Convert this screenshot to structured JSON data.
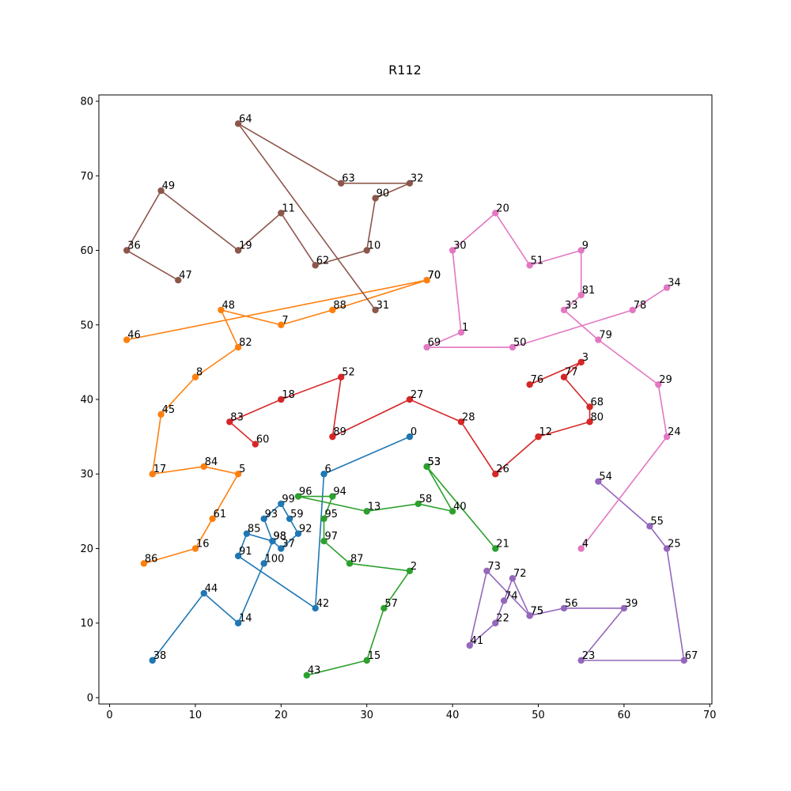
{
  "chart_data": {
    "type": "line",
    "title": "R112",
    "xlabel": "",
    "ylabel": "",
    "xlim": [
      -1.25,
      70.25
    ],
    "ylim": [
      -0.85,
      80.85
    ],
    "x_ticks": [
      0,
      10,
      20,
      30,
      40,
      50,
      60,
      70
    ],
    "y_ticks": [
      0,
      10,
      20,
      30,
      40,
      50,
      60,
      70,
      80
    ],
    "grid": false,
    "legend": "none",
    "series": [
      {
        "color": "#1f77b4",
        "points": [
          {
            "label": "0",
            "x": 35,
            "y": 35
          },
          {
            "label": "6",
            "x": 25,
            "y": 30
          },
          {
            "label": "42",
            "x": 24,
            "y": 12
          },
          {
            "label": "91",
            "x": 15,
            "y": 19
          },
          {
            "label": "85",
            "x": 16,
            "y": 22
          },
          {
            "label": "98",
            "x": 19,
            "y": 21
          },
          {
            "label": "37",
            "x": 20,
            "y": 20
          },
          {
            "label": "92",
            "x": 22,
            "y": 22
          },
          {
            "label": "59",
            "x": 21,
            "y": 24
          },
          {
            "label": "99",
            "x": 20,
            "y": 26
          },
          {
            "label": "93",
            "x": 18,
            "y": 24
          },
          {
            "label": "98",
            "x": 19,
            "y": 21
          },
          {
            "label": "100",
            "x": 18,
            "y": 18
          },
          {
            "label": "14",
            "x": 15,
            "y": 10
          },
          {
            "label": "44",
            "x": 11,
            "y": 14
          },
          {
            "label": "38",
            "x": 5,
            "y": 5
          }
        ]
      },
      {
        "color": "#ff7f0e",
        "points": [
          {
            "label": "70",
            "x": 37,
            "y": 56
          },
          {
            "label": "46",
            "x": 2,
            "y": 48
          },
          {
            "label": "70",
            "x": 37,
            "y": 56
          },
          {
            "label": "88",
            "x": 26,
            "y": 52
          },
          {
            "label": "7",
            "x": 20,
            "y": 50
          },
          {
            "label": "48",
            "x": 13,
            "y": 52
          },
          {
            "label": "82",
            "x": 15,
            "y": 47
          },
          {
            "label": "8",
            "x": 10,
            "y": 43
          },
          {
            "label": "45",
            "x": 6,
            "y": 38
          },
          {
            "label": "17",
            "x": 5,
            "y": 30
          },
          {
            "label": "84",
            "x": 11,
            "y": 31
          },
          {
            "label": "5",
            "x": 15,
            "y": 30
          },
          {
            "label": "61",
            "x": 12,
            "y": 24
          },
          {
            "label": "16",
            "x": 10,
            "y": 20
          },
          {
            "label": "86",
            "x": 4,
            "y": 18
          }
        ]
      },
      {
        "color": "#2ca02c",
        "points": [
          {
            "label": "53",
            "x": 37,
            "y": 31
          },
          {
            "label": "21",
            "x": 45,
            "y": 20
          },
          {
            "label": "53",
            "x": 37,
            "y": 31
          },
          {
            "label": "40",
            "x": 40,
            "y": 25
          },
          {
            "label": "58",
            "x": 36,
            "y": 26
          },
          {
            "label": "13",
            "x": 30,
            "y": 25
          },
          {
            "label": "96",
            "x": 22,
            "y": 27
          },
          {
            "label": "94",
            "x": 26,
            "y": 27
          },
          {
            "label": "95",
            "x": 25,
            "y": 24
          },
          {
            "label": "97",
            "x": 25,
            "y": 21
          },
          {
            "label": "87",
            "x": 28,
            "y": 18
          },
          {
            "label": "2",
            "x": 35,
            "y": 17
          },
          {
            "label": "57",
            "x": 32,
            "y": 12
          },
          {
            "label": "15",
            "x": 30,
            "y": 5
          },
          {
            "label": "43",
            "x": 23,
            "y": 3
          }
        ]
      },
      {
        "color": "#d62728",
        "points": [
          {
            "label": "60",
            "x": 17,
            "y": 34
          },
          {
            "label": "83",
            "x": 14,
            "y": 37
          },
          {
            "label": "18",
            "x": 20,
            "y": 40
          },
          {
            "label": "52",
            "x": 27,
            "y": 43
          },
          {
            "label": "89",
            "x": 26,
            "y": 35
          },
          {
            "label": "27",
            "x": 35,
            "y": 40
          },
          {
            "label": "28",
            "x": 41,
            "y": 37
          },
          {
            "label": "26",
            "x": 45,
            "y": 30
          },
          {
            "label": "12",
            "x": 50,
            "y": 35
          },
          {
            "label": "80",
            "x": 56,
            "y": 37
          },
          {
            "label": "68",
            "x": 56,
            "y": 39
          },
          {
            "label": "77",
            "x": 53,
            "y": 43
          },
          {
            "label": "3",
            "x": 55,
            "y": 45
          },
          {
            "label": "76",
            "x": 49,
            "y": 42
          }
        ]
      },
      {
        "color": "#9467bd",
        "points": [
          {
            "label": "54",
            "x": 57,
            "y": 29
          },
          {
            "label": "55",
            "x": 63,
            "y": 23
          },
          {
            "label": "25",
            "x": 65,
            "y": 20
          },
          {
            "label": "67",
            "x": 67,
            "y": 5
          },
          {
            "label": "23",
            "x": 55,
            "y": 5
          },
          {
            "label": "39",
            "x": 60,
            "y": 12
          },
          {
            "label": "56",
            "x": 53,
            "y": 12
          },
          {
            "label": "75",
            "x": 49,
            "y": 11
          },
          {
            "label": "72",
            "x": 47,
            "y": 16
          },
          {
            "label": "74",
            "x": 46,
            "y": 13
          },
          {
            "label": "22",
            "x": 45,
            "y": 10
          },
          {
            "label": "41",
            "x": 42,
            "y": 7
          },
          {
            "label": "73",
            "x": 44,
            "y": 17
          },
          {
            "label": "75",
            "x": 49,
            "y": 11
          }
        ]
      },
      {
        "color": "#8c564b",
        "points": [
          {
            "label": "31",
            "x": 31,
            "y": 52
          },
          {
            "label": "64",
            "x": 15,
            "y": 77
          },
          {
            "label": "63",
            "x": 27,
            "y": 69
          },
          {
            "label": "32",
            "x": 35,
            "y": 69
          },
          {
            "label": "90",
            "x": 31,
            "y": 67
          },
          {
            "label": "10",
            "x": 30,
            "y": 60
          },
          {
            "label": "62",
            "x": 24,
            "y": 58
          },
          {
            "label": "11",
            "x": 20,
            "y": 65
          },
          {
            "label": "19",
            "x": 15,
            "y": 60
          },
          {
            "label": "49",
            "x": 6,
            "y": 68
          },
          {
            "label": "36",
            "x": 2,
            "y": 60
          },
          {
            "label": "47",
            "x": 8,
            "y": 56
          }
        ]
      },
      {
        "color": "#e377c2",
        "points": [
          {
            "label": "4",
            "x": 55,
            "y": 20
          },
          {
            "label": "24",
            "x": 65,
            "y": 35
          },
          {
            "label": "29",
            "x": 64,
            "y": 42
          },
          {
            "label": "79",
            "x": 57,
            "y": 48
          },
          {
            "label": "33",
            "x": 53,
            "y": 52
          },
          {
            "label": "81",
            "x": 55,
            "y": 54
          },
          {
            "label": "9",
            "x": 55,
            "y": 60
          },
          {
            "label": "51",
            "x": 49,
            "y": 58
          },
          {
            "label": "20",
            "x": 45,
            "y": 65
          },
          {
            "label": "30",
            "x": 40,
            "y": 60
          },
          {
            "label": "1",
            "x": 41,
            "y": 49
          },
          {
            "label": "69",
            "x": 37,
            "y": 47
          },
          {
            "label": "50",
            "x": 47,
            "y": 47
          },
          {
            "label": "78",
            "x": 61,
            "y": 52
          },
          {
            "label": "34",
            "x": 65,
            "y": 55
          }
        ]
      }
    ]
  }
}
